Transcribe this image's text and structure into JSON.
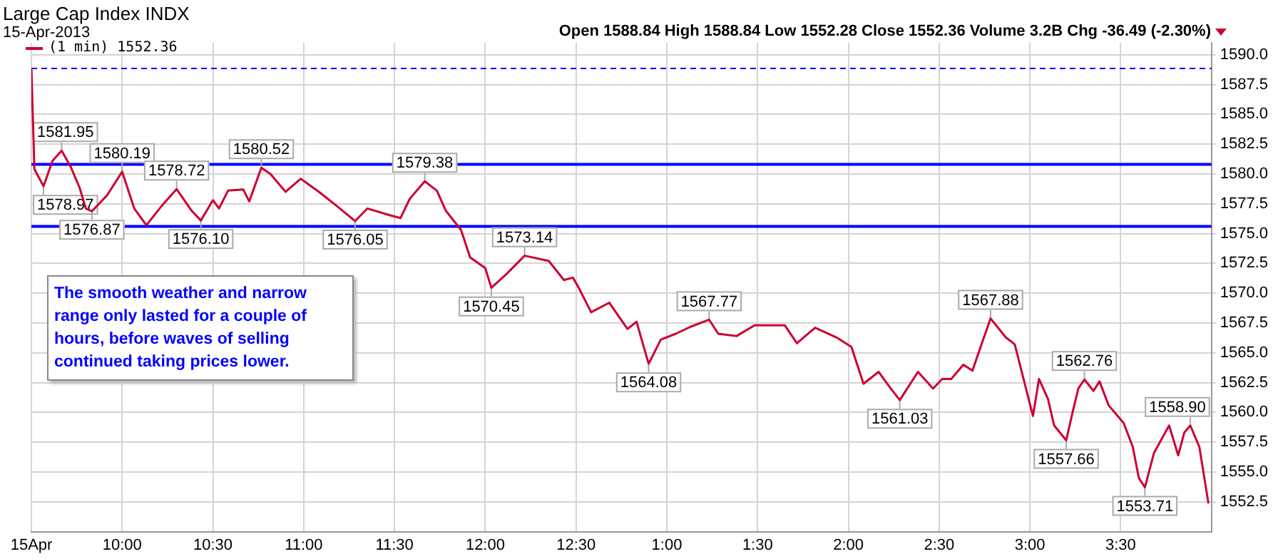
{
  "chart_data": {
    "type": "line",
    "title": "Large Cap Index INDX",
    "subtitle": "15-Apr-2013",
    "series": [
      {
        "name": "(1 min) 1552.36",
        "color": "#cc0033",
        "x": [
          "2013-04-15T09:30",
          "2013-04-15T09:31",
          "2013-04-15T09:34",
          "2013-04-15T09:37",
          "2013-04-15T09:40",
          "2013-04-15T09:43",
          "2013-04-15T09:46",
          "2013-04-15T09:48",
          "2013-04-15T09:50",
          "2013-04-15T09:55",
          "2013-04-15T10:00",
          "2013-04-15T10:04",
          "2013-04-15T10:08",
          "2013-04-15T10:13",
          "2013-04-15T10:18",
          "2013-04-15T10:23",
          "2013-04-15T10:26",
          "2013-04-15T10:30",
          "2013-04-15T10:32",
          "2013-04-15T10:35",
          "2013-04-15T10:40",
          "2013-04-15T10:42",
          "2013-04-15T10:46",
          "2013-04-15T10:49",
          "2013-04-15T10:54",
          "2013-04-15T10:59",
          "2013-04-15T11:05",
          "2013-04-15T11:11",
          "2013-04-15T11:17",
          "2013-04-15T11:21",
          "2013-04-15T11:29",
          "2013-04-15T11:32",
          "2013-04-15T11:35",
          "2013-04-15T11:40",
          "2013-04-15T11:44",
          "2013-04-15T11:47",
          "2013-04-15T11:52",
          "2013-04-15T11:55",
          "2013-04-15T12:00",
          "2013-04-15T12:02",
          "2013-04-15T12:07",
          "2013-04-15T12:13",
          "2013-04-15T12:21",
          "2013-04-15T12:26",
          "2013-04-15T12:29",
          "2013-04-15T12:31",
          "2013-04-15T12:35",
          "2013-04-15T12:41",
          "2013-04-15T12:47",
          "2013-04-15T12:50",
          "2013-04-15T12:54",
          "2013-04-15T12:58",
          "2013-04-15T13:03",
          "2013-04-15T13:08",
          "2013-04-15T13:14",
          "2013-04-15T13:17",
          "2013-04-15T13:23",
          "2013-04-15T13:29",
          "2013-04-15T13:39",
          "2013-04-15T13:43",
          "2013-04-15T13:49",
          "2013-04-15T13:56",
          "2013-04-15T14:01",
          "2013-04-15T14:05",
          "2013-04-15T14:10",
          "2013-04-15T14:14",
          "2013-04-15T14:17",
          "2013-04-15T14:23",
          "2013-04-15T14:28",
          "2013-04-15T14:31",
          "2013-04-15T14:34",
          "2013-04-15T14:38",
          "2013-04-15T14:41",
          "2013-04-15T14:44",
          "2013-04-15T14:47",
          "2013-04-15T14:52",
          "2013-04-15T14:55",
          "2013-04-15T15:01",
          "2013-04-15T15:03",
          "2013-04-15T15:06",
          "2013-04-15T15:08",
          "2013-04-15T15:12",
          "2013-04-15T15:14",
          "2013-04-15T15:16",
          "2013-04-15T15:18",
          "2013-04-15T15:21",
          "2013-04-15T15:23",
          "2013-04-15T15:26",
          "2013-04-15T15:31",
          "2013-04-15T15:34",
          "2013-04-15T15:36",
          "2013-04-15T15:38",
          "2013-04-15T15:41",
          "2013-04-15T15:46",
          "2013-04-15T15:49",
          "2013-04-15T15:51",
          "2013-04-15T15:53",
          "2013-04-15T15:56",
          "2013-04-15T15:59"
        ],
        "values": [
          1588.84,
          1580.4,
          1578.97,
          1581.1,
          1581.95,
          1580.6,
          1578.8,
          1577.1,
          1576.87,
          1578.2,
          1580.19,
          1577.1,
          1575.7,
          1577.3,
          1578.72,
          1576.9,
          1576.1,
          1577.8,
          1577.1,
          1578.6,
          1578.7,
          1577.7,
          1580.52,
          1580.0,
          1578.5,
          1579.6,
          1578.5,
          1577.3,
          1576.05,
          1577.1,
          1576.5,
          1576.3,
          1577.9,
          1579.38,
          1578.6,
          1576.9,
          1575.3,
          1573.0,
          1572.1,
          1570.45,
          1571.6,
          1573.14,
          1572.7,
          1571.1,
          1571.3,
          1570.4,
          1568.4,
          1569.2,
          1567.0,
          1567.6,
          1564.08,
          1566.1,
          1566.6,
          1567.2,
          1567.77,
          1566.6,
          1566.4,
          1567.3,
          1567.3,
          1565.8,
          1567.1,
          1566.3,
          1565.5,
          1562.4,
          1563.4,
          1562.0,
          1561.03,
          1563.4,
          1562.0,
          1562.8,
          1562.8,
          1564.0,
          1563.5,
          1565.7,
          1567.88,
          1566.3,
          1565.7,
          1559.7,
          1562.8,
          1561.1,
          1558.9,
          1557.66,
          1559.9,
          1562.0,
          1562.76,
          1561.8,
          1562.6,
          1560.6,
          1559.1,
          1557.1,
          1554.5,
          1553.71,
          1556.6,
          1558.9,
          1556.4,
          1558.3,
          1558.9,
          1557.1,
          1552.36
        ]
      }
    ],
    "xlim": [
      "2013-04-15T09:30",
      "2013-04-15T16:00"
    ],
    "xticks": [
      {
        "value": "2013-04-15T09:30",
        "label": "15Apr"
      },
      {
        "value": "2013-04-15T10:00",
        "label": "10:00"
      },
      {
        "value": "2013-04-15T10:30",
        "label": "10:30"
      },
      {
        "value": "2013-04-15T11:00",
        "label": "11:00"
      },
      {
        "value": "2013-04-15T11:30",
        "label": "11:30"
      },
      {
        "value": "2013-04-15T12:00",
        "label": "12:00"
      },
      {
        "value": "2013-04-15T12:30",
        "label": "12:30"
      },
      {
        "value": "2013-04-15T13:00",
        "label": "1:00"
      },
      {
        "value": "2013-04-15T13:30",
        "label": "1:30"
      },
      {
        "value": "2013-04-15T14:00",
        "label": "2:00"
      },
      {
        "value": "2013-04-15T14:30",
        "label": "2:30"
      },
      {
        "value": "2013-04-15T15:00",
        "label": "3:00"
      },
      {
        "value": "2013-04-15T15:30",
        "label": "3:30"
      }
    ],
    "ylim": [
      1550,
      1591
    ],
    "yticks": [
      1552.5,
      {
        "value": 1555,
        "label": "1555.0"
      },
      1557.5,
      {
        "value": 1560,
        "label": "1560.0"
      },
      1562.5,
      {
        "value": 1565,
        "label": "1565.0"
      },
      1567.5,
      {
        "value": 1570,
        "label": "1570.0"
      },
      1572.5,
      {
        "value": 1575,
        "label": "1575.0"
      },
      1577.5,
      {
        "value": 1580,
        "label": "1580.0"
      },
      1582.5,
      {
        "value": 1585,
        "label": "1585.0"
      },
      1587.5,
      {
        "value": 1590,
        "label": "1590.0"
      }
    ],
    "grid": true,
    "legend": "top left",
    "line_style": "solid",
    "marker": "none",
    "ref_lines": [
      {
        "axis": "y",
        "value": 1588.84,
        "color": "#0000ff",
        "line_style": "dashed"
      },
      {
        "axis": "y",
        "value": 1580.8,
        "color": "#0000ff",
        "line_style": "solid"
      },
      {
        "axis": "y",
        "value": 1575.6,
        "color": "#0000ff",
        "line_style": "solid"
      }
    ],
    "annotations": [
      "Open 1588.84 High 1588.84 Low 1552.28 Close 1552.36 Volume 3.2B Chg -36.49 (-2.30%)",
      "The smooth weather and narrow range only lasted for a couple of hours, before waves of selling continued taking prices lower.",
      {
        "text": "1578.97",
        "x": "2013-04-15T09:34",
        "y": 1578.97
      },
      {
        "text": "1581.95",
        "x": "2013-04-15T09:40",
        "y": 1581.95
      },
      {
        "text": "1576.87",
        "x": "2013-04-15T09:50",
        "y": 1576.87
      },
      {
        "text": "1580.19",
        "x": "2013-04-15T10:00",
        "y": 1580.19
      },
      {
        "text": "1578.72",
        "x": "2013-04-15T10:18",
        "y": 1578.72
      },
      {
        "text": "1576.10",
        "x": "2013-04-15T10:26",
        "y": 1576.1
      },
      {
        "text": "1580.52",
        "x": "2013-04-15T10:46",
        "y": 1580.52
      },
      {
        "text": "1576.05",
        "x": "2013-04-15T11:17",
        "y": 1576.05
      },
      {
        "text": "1579.38",
        "x": "2013-04-15T11:40",
        "y": 1579.38
      },
      {
        "text": "1570.45",
        "x": "2013-04-15T12:02",
        "y": 1570.45
      },
      {
        "text": "1573.14",
        "x": "2013-04-15T12:13",
        "y": 1573.14
      },
      {
        "text": "1564.08",
        "x": "2013-04-15T12:54",
        "y": 1564.08
      },
      {
        "text": "1567.77",
        "x": "2013-04-15T13:14",
        "y": 1567.77
      },
      {
        "text": "1561.03",
        "x": "2013-04-15T14:17",
        "y": 1561.03
      },
      {
        "text": "1567.88",
        "x": "2013-04-15T14:47",
        "y": 1567.88
      },
      {
        "text": "1557.66",
        "x": "2013-04-15T15:12",
        "y": 1557.66
      },
      {
        "text": "1562.76",
        "x": "2013-04-15T15:18",
        "y": 1562.76
      },
      {
        "text": "1553.71",
        "x": "2013-04-15T15:38",
        "y": 1553.71
      },
      {
        "text": "1558.90",
        "x": "2013-04-15T15:53",
        "y": 1558.9
      }
    ]
  }
}
